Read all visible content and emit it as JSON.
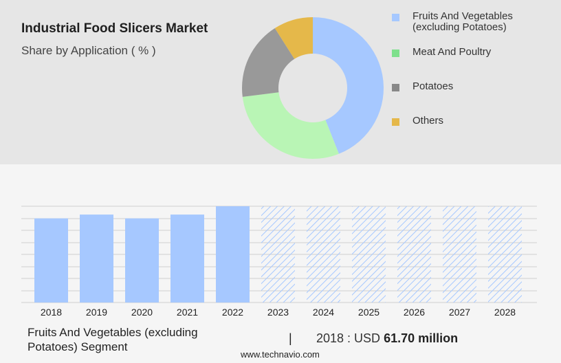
{
  "header": {
    "title": "Industrial Food Slicers Market",
    "subtitle": "Share by Application ( % )"
  },
  "chart_data": [
    {
      "type": "pie",
      "donut": true,
      "title": "",
      "segments": [
        {
          "label": "Fruits And Vegetables (excluding Potatoes)",
          "value": 44,
          "color": "#a6c8ff"
        },
        {
          "label": "Meat And Poultry",
          "value": 29,
          "color": "#b9f5b5"
        },
        {
          "label": "Potatoes",
          "value": 18,
          "color": "#999999"
        },
        {
          "label": "Others",
          "value": 9,
          "color": "#e5b84a"
        }
      ],
      "legend": {
        "placement": "right",
        "items": [
          {
            "label_line1": "Fruits And Vegetables",
            "label_line2": "(excluding Potatoes)",
            "color": "#a6c8ff"
          },
          {
            "label_line1": "Meat And Poultry",
            "label_line2": "",
            "color": "#7ee08c"
          },
          {
            "label_line1": "Potatoes",
            "label_line2": "",
            "color": "#888888"
          },
          {
            "label_line1": "Others",
            "label_line2": "",
            "color": "#e5b84a"
          }
        ]
      }
    },
    {
      "type": "bar",
      "title": "",
      "xlabel": "",
      "ylabel": "",
      "categories": [
        "2018",
        "2019",
        "2020",
        "2021",
        "2022",
        "2023",
        "2024",
        "2025",
        "2026",
        "2027",
        "2028"
      ],
      "values": [
        61.7,
        64.5,
        61.7,
        64.5,
        70.6,
        70.6,
        70.6,
        70.6,
        70.6,
        70.6,
        70.6
      ],
      "forecast_from": "2023",
      "ylim": [
        0,
        70.6
      ],
      "grid": true,
      "bar_color": "#a6c8ff",
      "forecast_hatch_color": "#a6c8ff"
    }
  ],
  "footer": {
    "segment_caption": "Fruits And Vegetables (excluding Potatoes) Segment",
    "divider": "|",
    "stat_prefix": "2018 : USD",
    "stat_value": "61.70 million",
    "website": "www.technavio.com"
  }
}
